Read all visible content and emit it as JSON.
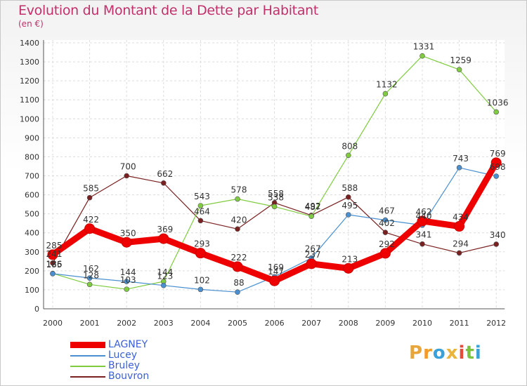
{
  "header": {
    "title": "Evolution du Montant de la Dette par Habitant",
    "subtitle": "(en €)"
  },
  "logo": {
    "letters": [
      "P",
      "r",
      "o",
      "x",
      "i",
      "t",
      "i"
    ],
    "colors": [
      "#e8a53a",
      "#f29b2a",
      "#3aa0d8",
      "#e8b53a",
      "#e84a3a",
      "#7cc242",
      "#3aa0d8"
    ]
  },
  "chart_data": {
    "type": "line",
    "title": "Evolution du Montant de la Dette par Habitant",
    "subtitle": "(en €)",
    "xlabel": "",
    "ylabel": "",
    "x": [
      "2000",
      "2001",
      "2002",
      "2003",
      "2004",
      "2005",
      "2006",
      "2007",
      "2008",
      "2009",
      "2010",
      "2011",
      "2012"
    ],
    "ylim": [
      0,
      1400
    ],
    "yticks": [
      0,
      100,
      200,
      300,
      400,
      500,
      600,
      700,
      800,
      900,
      1000,
      1100,
      1200,
      1300,
      1400
    ],
    "grid": true,
    "legend_position": "bottom-left",
    "series": [
      {
        "name": "LAGNEY",
        "color": "#ee0000",
        "values": [
          285,
          422,
          350,
          369,
          293,
          222,
          147,
          237,
          213,
          292,
          462,
          434,
          769
        ],
        "labels": [
          "285",
          "422",
          "350",
          "369",
          "293",
          "222",
          "147",
          "237",
          "213",
          "292",
          "462",
          "434",
          "769"
        ]
      },
      {
        "name": "Lucey",
        "color": "#4a90d0",
        "values": [
          185,
          162,
          144,
          123,
          102,
          88,
          169,
          267,
          495,
          467,
          440,
          743,
          698
        ],
        "labels": [
          "185",
          "162",
          "144",
          "123",
          "102",
          "88",
          "169",
          "267",
          "495",
          "467",
          "440",
          "743",
          "698"
        ]
      },
      {
        "name": "Bruley",
        "color": "#80cc40",
        "values": [
          186,
          128,
          103,
          144,
          543,
          578,
          538,
          487,
          808,
          1132,
          1331,
          1259,
          1036
        ],
        "labels": [
          "186",
          "128",
          "103",
          "144",
          "543",
          "578",
          "538",
          "487",
          "808",
          "1132",
          "1331",
          "1259",
          "1036"
        ]
      },
      {
        "name": "Bouvron",
        "color": "#7a2020",
        "values": [
          241,
          585,
          700,
          662,
          464,
          420,
          558,
          492,
          588,
          402,
          341,
          294,
          340
        ],
        "labels": [
          "241",
          "585",
          "700",
          "662",
          "464",
          "420",
          "558",
          "492",
          "588",
          "402",
          "341",
          "294",
          "340"
        ]
      }
    ]
  }
}
